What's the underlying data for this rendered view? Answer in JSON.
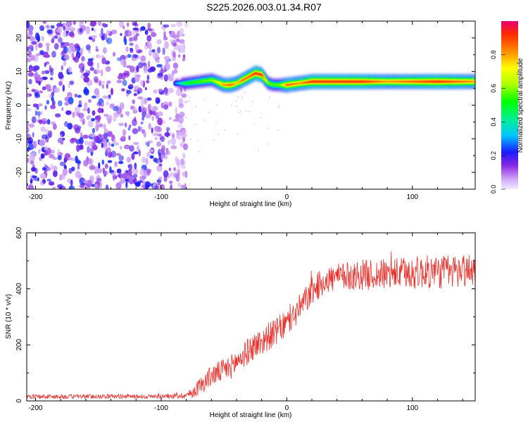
{
  "title": "S225.2026.003.01.34.R07",
  "chart_data": [
    {
      "type": "heatmap",
      "name": "spectrogram",
      "xlabel": "Height of straight line (km)",
      "ylabel": "Frequency (Hz)",
      "xlim": [
        -207,
        150
      ],
      "ylim": [
        -25,
        25
      ],
      "xticks": [
        -200,
        -100,
        0,
        100
      ],
      "yticks": [
        -20,
        -10,
        0,
        10,
        20
      ],
      "colorbar": {
        "label": "Normalized spectral amplitude",
        "range": [
          0,
          1
        ],
        "ticks": [
          0.0,
          0.2,
          0.4,
          0.6,
          0.8
        ]
      },
      "ridge": {
        "x": [
          -90,
          -80,
          -70,
          -60,
          -50,
          -45,
          -40,
          -35,
          -30,
          -25,
          -20,
          -15,
          -10,
          -5,
          0,
          10,
          20,
          40,
          60,
          80,
          100,
          120,
          150
        ],
        "freq": [
          6.5,
          6.5,
          7.0,
          7.5,
          6.0,
          6.0,
          6.5,
          7.5,
          8.5,
          9.5,
          9.0,
          6.5,
          6.0,
          6.0,
          6.0,
          6.5,
          7.0,
          7.0,
          7.0,
          7.0,
          7.0,
          7.0,
          7.0
        ],
        "amplitude": [
          0.25,
          0.5,
          0.55,
          0.6,
          0.8,
          0.85,
          0.75,
          0.85,
          0.85,
          0.9,
          0.9,
          0.6,
          0.55,
          0.6,
          0.85,
          0.8,
          0.9,
          0.9,
          0.9,
          0.8,
          0.85,
          0.9,
          0.8
        ]
      },
      "noise_region_x": [
        -207,
        -88
      ],
      "noise_amplitude_range": [
        0.05,
        0.25
      ]
    },
    {
      "type": "line",
      "name": "snr",
      "xlabel": "Height of straight line (km)",
      "ylabel": "SNR (10 * v/v)",
      "xlim": [
        -207,
        150
      ],
      "ylim": [
        0,
        600
      ],
      "xticks": [
        -200,
        -100,
        0,
        100
      ],
      "yticks": [
        0,
        200,
        400,
        600
      ],
      "series": [
        {
          "name": "SNR",
          "color": "#e8322e",
          "x": [
            -207,
            -180,
            -150,
            -120,
            -100,
            -90,
            -80,
            -75,
            -70,
            -65,
            -60,
            -55,
            -50,
            -45,
            -40,
            -35,
            -30,
            -25,
            -20,
            -15,
            -10,
            -5,
            0,
            5,
            10,
            15,
            20,
            25,
            30,
            40,
            50,
            60,
            70,
            80,
            90,
            100,
            110,
            120,
            130,
            140,
            150
          ],
          "y": [
            15,
            15,
            16,
            16,
            16,
            17,
            20,
            30,
            50,
            70,
            90,
            100,
            110,
            120,
            140,
            160,
            180,
            200,
            210,
            230,
            240,
            260,
            275,
            300,
            330,
            360,
            390,
            410,
            430,
            440,
            445,
            450,
            450,
            452,
            455,
            457,
            460,
            460,
            462,
            465,
            470
          ],
          "noise": [
            8,
            8,
            8,
            8,
            8,
            9,
            12,
            20,
            30,
            35,
            38,
            40,
            42,
            44,
            45,
            46,
            48,
            50,
            50,
            50,
            50,
            50,
            50,
            50,
            50,
            50,
            50,
            50,
            50,
            50,
            52,
            55,
            55,
            55,
            58,
            60,
            60,
            62,
            62,
            62,
            62
          ]
        }
      ]
    }
  ],
  "colors": {
    "axis": "#000000",
    "snr_line": "#e8322e",
    "background": "#ffffff"
  }
}
